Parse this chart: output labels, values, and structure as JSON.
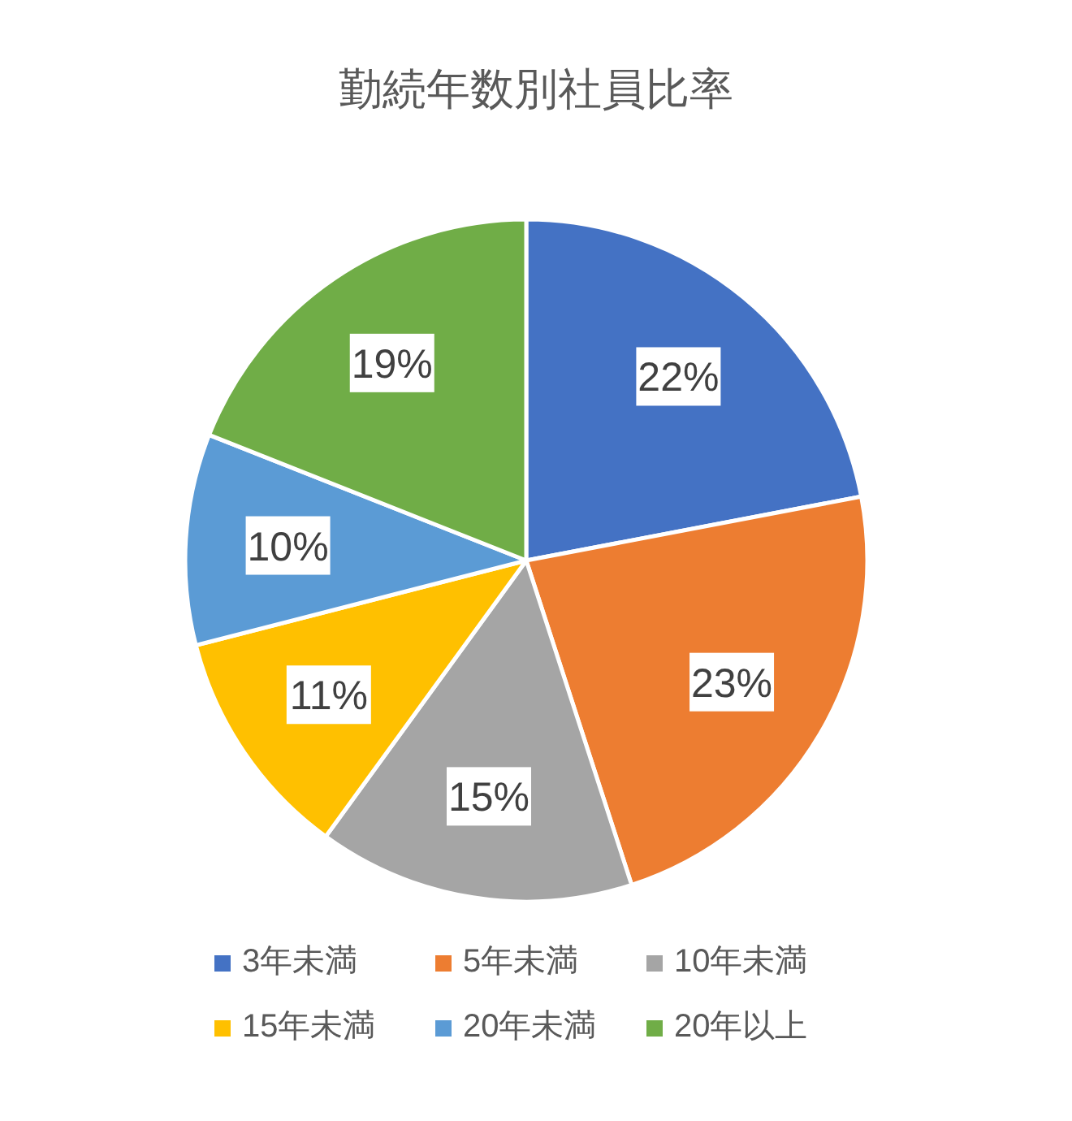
{
  "chart_data": {
    "type": "pie",
    "title": "勤続年数別社員比率",
    "categories": [
      "3年未満",
      "5年未満",
      "10年未満",
      "15年未満",
      "20年未満",
      "20年以上"
    ],
    "values": [
      22,
      23,
      15,
      11,
      10,
      19
    ],
    "colors": [
      "#4472c4",
      "#ed7d31",
      "#a5a5a5",
      "#ffc000",
      "#5b9bd5",
      "#70ad47"
    ],
    "value_labels": [
      "22%",
      "23%",
      "15%",
      "11%",
      "10%",
      "19%"
    ],
    "legend": "bottom"
  }
}
